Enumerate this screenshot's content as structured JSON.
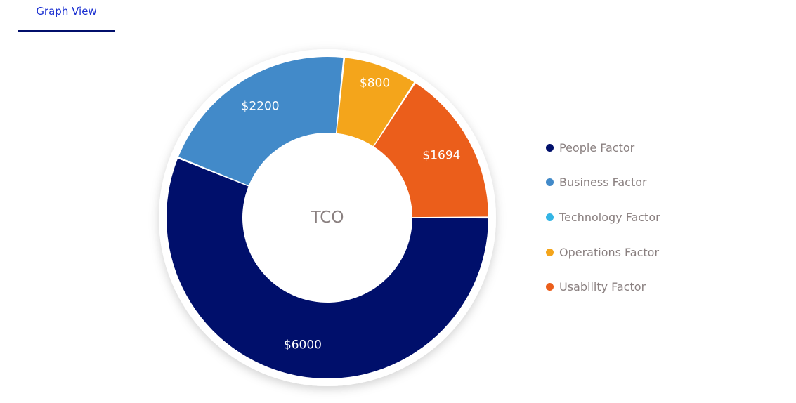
{
  "tabs": [
    {
      "label": "Graph View",
      "active": true
    }
  ],
  "chart_data": {
    "type": "pie",
    "variant": "donut",
    "center_label": "TCO",
    "series": [
      {
        "name": "People Factor",
        "value": 6000,
        "label": "$6000",
        "color": "#000f6b"
      },
      {
        "name": "Business Factor",
        "value": 2200,
        "label": "$2200",
        "color": "#428ac9"
      },
      {
        "name": "Technology Factor",
        "value": 0,
        "label": "",
        "color": "#33b5e5"
      },
      {
        "name": "Operations Factor",
        "value": 800,
        "label": "$800",
        "color": "#f4a51b"
      },
      {
        "name": "Usability Factor",
        "value": 1694,
        "label": "$1694",
        "color": "#eb5e1b"
      }
    ],
    "legend_position": "right"
  }
}
